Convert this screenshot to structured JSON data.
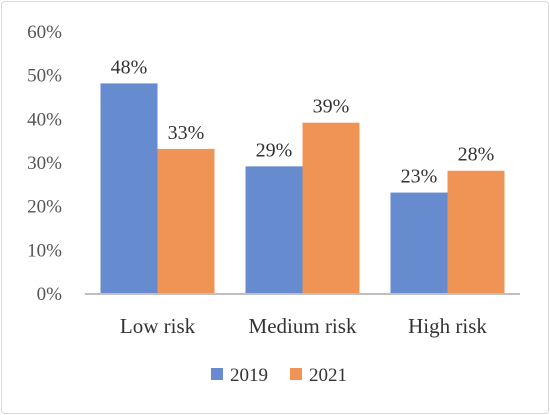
{
  "chart_data": {
    "type": "bar",
    "categories": [
      "Low risk",
      "Medium risk",
      "High risk"
    ],
    "series": [
      {
        "name": "2019",
        "values": [
          48,
          29,
          23
        ],
        "labels": [
          "48%",
          "29%",
          "23%"
        ],
        "color": "#4472c4"
      },
      {
        "name": "2021",
        "values": [
          33,
          39,
          28
        ],
        "labels": [
          "33%",
          "39%",
          "28%"
        ],
        "color": "#ed7d31"
      }
    ],
    "yticks": [
      "0%",
      "10%",
      "20%",
      "30%",
      "40%",
      "50%",
      "60%"
    ],
    "ylim": [
      0,
      60
    ],
    "title": "",
    "xlabel": "",
    "ylabel": "",
    "grid": false,
    "legend_position": "bottom"
  }
}
